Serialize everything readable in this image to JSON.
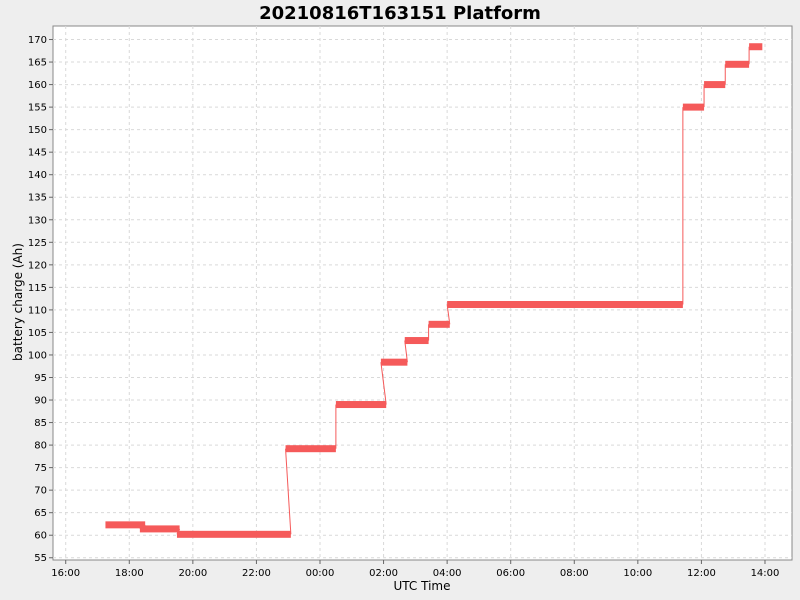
{
  "chart_data": {
    "type": "line",
    "title": "20210816T163151 Platform",
    "xlabel": "UTC Time",
    "ylabel": "battery charge (Ah)",
    "grid": true,
    "colors": {
      "series": "#f55a5a",
      "background": "#ffffff",
      "outer": "#eeeeee",
      "grid": "#d9d9d9"
    },
    "x_ticks": [
      "16:00",
      "18:00",
      "20:00",
      "22:00",
      "00:00",
      "02:00",
      "04:00",
      "06:00",
      "08:00",
      "10:00",
      "12:00",
      "14:00"
    ],
    "y_ticks": [
      55,
      60,
      65,
      70,
      75,
      80,
      85,
      90,
      95,
      100,
      105,
      110,
      115,
      120,
      125,
      130,
      135,
      140,
      145,
      150,
      155,
      160,
      165,
      170
    ],
    "xlim_hours": [
      15.6,
      38.85
    ],
    "ylim": [
      54.5,
      173
    ],
    "segments": [
      {
        "start": "17:15",
        "end": "18:30",
        "value": 62.3
      },
      {
        "start": "18:20",
        "end": "19:35",
        "value": 61.4
      },
      {
        "start": "19:30",
        "end": "23:05",
        "value": 60.2
      },
      {
        "start": "22:55",
        "end": "00:30",
        "value": 79.2
      },
      {
        "start": "00:30",
        "end": "02:05",
        "value": 89.0
      },
      {
        "start": "01:55",
        "end": "02:45",
        "value": 98.4
      },
      {
        "start": "02:40",
        "end": "03:25",
        "value": 103.2
      },
      {
        "start": "03:25",
        "end": "04:05",
        "value": 106.8
      },
      {
        "start": "04:00",
        "end": "11:25",
        "value": 111.2
      },
      {
        "start": "11:25",
        "end": "12:05",
        "value": 155.0
      },
      {
        "start": "12:05",
        "end": "12:45",
        "value": 160.0
      },
      {
        "start": "12:45",
        "end": "13:30",
        "value": 164.5
      },
      {
        "start": "13:30",
        "end": "13:55",
        "value": 168.4
      }
    ]
  }
}
